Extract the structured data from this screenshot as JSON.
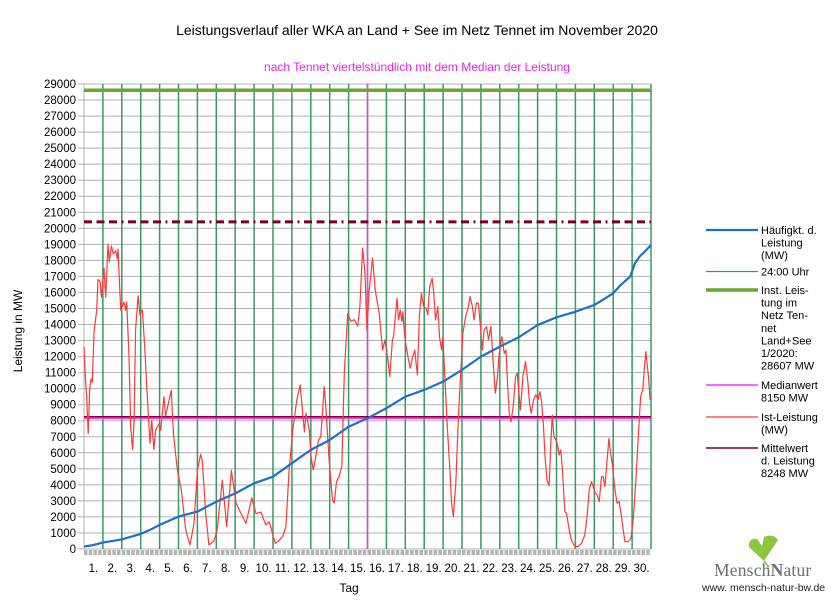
{
  "chart_data": {
    "type": "line",
    "title": "Leistungsverlauf aller WKA an Land + See im Netz Tennet im November 2020",
    "subtitle": "nach Tennet viertelstündlich mit dem Median der Leistung",
    "xlabel": "Tag",
    "ylabel": "Leistung in MW",
    "xlim": [
      0,
      30
    ],
    "ylim": [
      0,
      29000
    ],
    "grid": true,
    "legend_position": "right",
    "y_ticks": [
      0,
      1000,
      2000,
      3000,
      4000,
      5000,
      6000,
      7000,
      8000,
      9000,
      10000,
      11000,
      12000,
      13000,
      14000,
      15000,
      16000,
      17000,
      18000,
      19000,
      20000,
      21000,
      22000,
      23000,
      24000,
      25000,
      26000,
      27000,
      28000,
      29000
    ],
    "x_tick_labels": [
      "1.",
      "2.",
      "3.",
      "4.",
      "5.",
      "6.",
      "7.",
      "8.",
      "9.",
      "10.",
      "11.",
      "12.",
      "13.",
      "14.",
      "15.",
      "16.",
      "17.",
      "18.",
      "19.",
      "20.",
      "21.",
      "22.",
      "23.",
      "24.",
      "25.",
      "26.",
      "27.",
      "28.",
      "29.",
      "30."
    ],
    "series": [
      {
        "type": "line",
        "legend_lines": [
          "Häufigkt. d.",
          "Leistung",
          "(MW)"
        ],
        "color": "#1e6fc8",
        "points": [
          [
            0.0,
            150
          ],
          [
            0.5,
            250
          ],
          [
            1.0,
            400
          ],
          [
            2.0,
            600
          ],
          [
            3.0,
            940
          ],
          [
            3.5,
            1200
          ],
          [
            4.0,
            1500
          ],
          [
            5.0,
            2020
          ],
          [
            6.0,
            2330
          ],
          [
            7.0,
            2950
          ],
          [
            8.0,
            3470
          ],
          [
            9.0,
            4100
          ],
          [
            10.0,
            4510
          ],
          [
            11.0,
            5350
          ],
          [
            12.0,
            6180
          ],
          [
            13.0,
            6800
          ],
          [
            14.0,
            7630
          ],
          [
            15.0,
            8150
          ],
          [
            16.0,
            8780
          ],
          [
            17.0,
            9500
          ],
          [
            18.0,
            9920
          ],
          [
            19.0,
            10440
          ],
          [
            20.0,
            11170
          ],
          [
            21.0,
            12000
          ],
          [
            22.0,
            12620
          ],
          [
            23.0,
            13200
          ],
          [
            24.0,
            13970
          ],
          [
            25.0,
            14450
          ],
          [
            26.0,
            14800
          ],
          [
            27.0,
            15220
          ],
          [
            27.3,
            15430
          ],
          [
            28.0,
            15950
          ],
          [
            28.4,
            16470
          ],
          [
            28.9,
            16990
          ],
          [
            29.15,
            17820
          ],
          [
            29.4,
            18240
          ],
          [
            29.75,
            18650
          ],
          [
            30.0,
            18960
          ]
        ]
      },
      {
        "type": "vlines",
        "legend_lines": [
          "24:00 Uhr"
        ],
        "color": "#379a64",
        "x": [
          1,
          2,
          3,
          4,
          5,
          6,
          7,
          8,
          9,
          10,
          11,
          12,
          13,
          14,
          15,
          16,
          17,
          18,
          19,
          20,
          21,
          22,
          23,
          24,
          25,
          26,
          27,
          28,
          29,
          30
        ]
      },
      {
        "type": "hline",
        "legend_lines": [
          "Inst. Leis-",
          "tung im",
          "Netz Ten-",
          "net",
          "Land+See",
          "1/2020:",
          "28607 MW"
        ],
        "color": "#6aa632",
        "value": 28607
      },
      {
        "type": "hline",
        "legend_lines": [
          "Medianwert",
          "8150 MW"
        ],
        "color": "#ff33ff",
        "value": 8150,
        "median_x": 15
      },
      {
        "type": "line",
        "legend_lines": [
          "Ist-Leistung",
          "(MW)"
        ],
        "color": "#ff3838",
        "points": [
          [
            0.0,
            12600
          ],
          [
            0.08,
            10500
          ],
          [
            0.14,
            9600
          ],
          [
            0.22,
            7200
          ],
          [
            0.3,
            10000
          ],
          [
            0.37,
            10600
          ],
          [
            0.44,
            10400
          ],
          [
            0.53,
            13500
          ],
          [
            0.67,
            14900
          ],
          [
            0.74,
            16800
          ],
          [
            0.85,
            16700
          ],
          [
            0.92,
            15700
          ],
          [
            1.06,
            17500
          ],
          [
            1.15,
            15700
          ],
          [
            1.27,
            19000
          ],
          [
            1.34,
            17900
          ],
          [
            1.45,
            18900
          ],
          [
            1.55,
            18400
          ],
          [
            1.68,
            18600
          ],
          [
            1.76,
            18100
          ],
          [
            1.8,
            18700
          ],
          [
            1.94,
            14900
          ],
          [
            2.12,
            15400
          ],
          [
            2.2,
            14900
          ],
          [
            2.26,
            15400
          ],
          [
            2.38,
            12000
          ],
          [
            2.47,
            7600
          ],
          [
            2.57,
            6200
          ],
          [
            2.65,
            8000
          ],
          [
            2.73,
            13700
          ],
          [
            2.86,
            15800
          ],
          [
            2.96,
            14600
          ],
          [
            3.09,
            14900
          ],
          [
            3.21,
            12600
          ],
          [
            3.35,
            9500
          ],
          [
            3.49,
            6600
          ],
          [
            3.58,
            8000
          ],
          [
            3.7,
            6200
          ],
          [
            3.79,
            7400
          ],
          [
            3.97,
            7800
          ],
          [
            4.06,
            7400
          ],
          [
            4.23,
            9500
          ],
          [
            4.32,
            8300
          ],
          [
            4.62,
            9900
          ],
          [
            4.73,
            7200
          ],
          [
            4.94,
            4900
          ],
          [
            5.15,
            3700
          ],
          [
            5.38,
            1200
          ],
          [
            5.61,
            250
          ],
          [
            5.82,
            1600
          ],
          [
            6.0,
            4900
          ],
          [
            6.17,
            5900
          ],
          [
            6.26,
            5500
          ],
          [
            6.44,
            2200
          ],
          [
            6.61,
            250
          ],
          [
            6.88,
            500
          ],
          [
            7.05,
            1200
          ],
          [
            7.32,
            4300
          ],
          [
            7.55,
            1400
          ],
          [
            7.8,
            4900
          ],
          [
            8.04,
            2870
          ],
          [
            8.39,
            2000
          ],
          [
            8.57,
            1600
          ],
          [
            8.88,
            3200
          ],
          [
            9.1,
            2200
          ],
          [
            9.36,
            2300
          ],
          [
            9.62,
            1500
          ],
          [
            9.8,
            1700
          ],
          [
            10.12,
            350
          ],
          [
            10.24,
            450
          ],
          [
            10.51,
            770
          ],
          [
            10.68,
            1400
          ],
          [
            10.86,
            5100
          ],
          [
            11.07,
            7600
          ],
          [
            11.26,
            9300
          ],
          [
            11.44,
            10230
          ],
          [
            11.57,
            8470
          ],
          [
            11.66,
            7300
          ],
          [
            11.75,
            8470
          ],
          [
            11.92,
            7420
          ],
          [
            12.01,
            5760
          ],
          [
            12.13,
            4930
          ],
          [
            12.27,
            5800
          ],
          [
            12.41,
            6800
          ],
          [
            12.53,
            7000
          ],
          [
            12.71,
            10120
          ],
          [
            12.8,
            8800
          ],
          [
            12.97,
            5550
          ],
          [
            13.15,
            3060
          ],
          [
            13.24,
            2870
          ],
          [
            13.36,
            4200
          ],
          [
            13.5,
            4500
          ],
          [
            13.64,
            5150
          ],
          [
            13.77,
            10960
          ],
          [
            13.95,
            14700
          ],
          [
            14.12,
            14200
          ],
          [
            14.3,
            14300
          ],
          [
            14.48,
            13900
          ],
          [
            14.6,
            15100
          ],
          [
            14.74,
            18760
          ],
          [
            14.87,
            17200
          ],
          [
            14.97,
            13660
          ],
          [
            15.09,
            16160
          ],
          [
            15.27,
            18140
          ],
          [
            15.41,
            16160
          ],
          [
            15.62,
            14700
          ],
          [
            15.8,
            12410
          ],
          [
            15.92,
            13030
          ],
          [
            16.06,
            12000
          ],
          [
            16.18,
            10750
          ],
          [
            16.32,
            13030
          ],
          [
            16.38,
            13300
          ],
          [
            16.47,
            14490
          ],
          [
            16.56,
            15640
          ],
          [
            16.64,
            14280
          ],
          [
            16.73,
            14910
          ],
          [
            16.82,
            14180
          ],
          [
            16.87,
            14800
          ],
          [
            16.99,
            13040
          ],
          [
            17.14,
            12000
          ],
          [
            17.26,
            11270
          ],
          [
            17.39,
            12000
          ],
          [
            17.5,
            12410
          ],
          [
            17.57,
            11580
          ],
          [
            17.64,
            10850
          ],
          [
            17.74,
            14490
          ],
          [
            17.85,
            15950
          ],
          [
            17.97,
            15120
          ],
          [
            18.1,
            15020
          ],
          [
            18.19,
            14600
          ],
          [
            18.29,
            16360
          ],
          [
            18.42,
            16890
          ],
          [
            18.51,
            15950
          ],
          [
            18.6,
            14290
          ],
          [
            18.72,
            15120
          ],
          [
            18.81,
            13240
          ],
          [
            18.92,
            12410
          ],
          [
            18.99,
            13240
          ],
          [
            19.1,
            10540
          ],
          [
            19.22,
            7630
          ],
          [
            19.35,
            5130
          ],
          [
            19.45,
            2850
          ],
          [
            19.54,
            2020
          ],
          [
            19.67,
            4100
          ],
          [
            19.81,
            8250
          ],
          [
            19.93,
            10960
          ],
          [
            20.05,
            13460
          ],
          [
            20.19,
            14490
          ],
          [
            20.34,
            15120
          ],
          [
            20.43,
            15740
          ],
          [
            20.55,
            15120
          ],
          [
            20.64,
            14280
          ],
          [
            20.76,
            15330
          ],
          [
            20.87,
            15330
          ],
          [
            20.99,
            13660
          ],
          [
            21.08,
            12410
          ],
          [
            21.17,
            13660
          ],
          [
            21.3,
            13870
          ],
          [
            21.4,
            13040
          ],
          [
            21.53,
            13870
          ],
          [
            21.62,
            12200
          ],
          [
            21.76,
            9710
          ],
          [
            21.88,
            10750
          ],
          [
            21.97,
            12200
          ],
          [
            22.11,
            13240
          ],
          [
            22.24,
            12200
          ],
          [
            22.33,
            12410
          ],
          [
            22.41,
            10330
          ],
          [
            22.5,
            8460
          ],
          [
            22.59,
            7940
          ],
          [
            22.71,
            8880
          ],
          [
            22.83,
            10750
          ],
          [
            22.92,
            10960
          ],
          [
            23.0,
            9920
          ],
          [
            23.09,
            8670
          ],
          [
            23.22,
            10750
          ],
          [
            23.36,
            11690
          ],
          [
            23.49,
            10330
          ],
          [
            23.57,
            9090
          ],
          [
            23.66,
            8460
          ],
          [
            23.79,
            9300
          ],
          [
            23.9,
            9610
          ],
          [
            24.02,
            9300
          ],
          [
            24.12,
            9810
          ],
          [
            24.21,
            9190
          ],
          [
            24.3,
            7840
          ],
          [
            24.4,
            5600
          ],
          [
            24.5,
            4300
          ],
          [
            24.61,
            3950
          ],
          [
            24.69,
            6300
          ],
          [
            24.78,
            8350
          ],
          [
            24.86,
            7010
          ],
          [
            24.97,
            6800
          ],
          [
            25.06,
            6490
          ],
          [
            25.14,
            5860
          ],
          [
            25.23,
            6170
          ],
          [
            25.32,
            4930
          ],
          [
            25.44,
            2330
          ],
          [
            25.53,
            2230
          ],
          [
            25.67,
            1190
          ],
          [
            25.79,
            560
          ],
          [
            25.97,
            150
          ],
          [
            26.14,
            150
          ],
          [
            26.32,
            350
          ],
          [
            26.5,
            870
          ],
          [
            26.62,
            2020
          ],
          [
            26.73,
            3680
          ],
          [
            26.85,
            4200
          ],
          [
            26.94,
            3890
          ],
          [
            27.06,
            3470
          ],
          [
            27.15,
            3370
          ],
          [
            27.26,
            2950
          ],
          [
            27.38,
            4510
          ],
          [
            27.47,
            4510
          ],
          [
            27.56,
            3890
          ],
          [
            27.65,
            5150
          ],
          [
            27.77,
            6900
          ],
          [
            27.86,
            5970
          ],
          [
            27.97,
            5150
          ],
          [
            28.09,
            3680
          ],
          [
            28.21,
            2850
          ],
          [
            28.32,
            2950
          ],
          [
            28.44,
            2020
          ],
          [
            28.53,
            1190
          ],
          [
            28.62,
            460
          ],
          [
            28.79,
            460
          ],
          [
            28.94,
            660
          ],
          [
            29.06,
            1810
          ],
          [
            29.2,
            4300
          ],
          [
            29.33,
            7010
          ],
          [
            29.45,
            9500
          ],
          [
            29.56,
            9920
          ],
          [
            29.64,
            11170
          ],
          [
            29.73,
            12310
          ],
          [
            29.78,
            11690
          ],
          [
            29.87,
            10750
          ],
          [
            29.95,
            9300
          ]
        ]
      },
      {
        "type": "hline",
        "legend_lines": [
          "Mittelwert",
          "d. Leistung",
          "8248 MW"
        ],
        "color": "#7b0028",
        "value": 8248
      },
      {
        "type": "hline",
        "color": "#7b0028",
        "style": "dash-dot",
        "value": 20400
      }
    ]
  },
  "logo": {
    "name_part1": "Mensch",
    "name_part2": "Natur",
    "url": "www. mensch-natur-bw.de",
    "leaf_color": "#8cc63e"
  }
}
